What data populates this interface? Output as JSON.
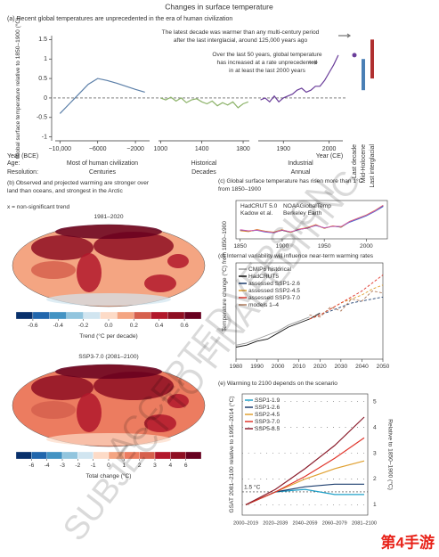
{
  "chart_data": [
    {
      "type": "segmented",
      "title": "Changes in surface temperature",
      "subtitle": "(a) Recent global temperatures are unprecedented in the era of human civilization",
      "ylabel": "Global surface temperature relative to 1850–1900 (°C)",
      "ylim": [
        -1.1,
        1.6
      ],
      "yticks": [
        -1,
        -0.5,
        0,
        0.5,
        1,
        1.5
      ],
      "xlabel": "Year (BCE)",
      "xlabel2": "Year (CE)",
      "segments": [
        {
          "color": "#5b7fa8",
          "xlim": [
            -10500,
            -500
          ],
          "xticks": [
            {
              "value": -10000,
              "label": "−10,000"
            },
            {
              "value": -6000,
              "label": "−6000"
            },
            {
              "value": -2000,
              "label": "−2000"
            }
          ],
          "x": [
            -10000,
            -9000,
            -8000,
            -7000,
            -6000,
            -5000,
            -4000,
            -3000,
            -2000,
            -1000
          ],
          "values": [
            -0.4,
            -0.15,
            0.1,
            0.35,
            0.5,
            0.45,
            0.38,
            0.3,
            0.22,
            0.15
          ]
        },
        {
          "color": "#8db36a",
          "xlim": [
            980,
            1860
          ],
          "xticks": [
            1000,
            1400,
            1800
          ],
          "x": [
            1000,
            1050,
            1100,
            1150,
            1200,
            1250,
            1300,
            1350,
            1400,
            1450,
            1500,
            1550,
            1600,
            1650,
            1700,
            1750,
            1800,
            1850
          ],
          "values": [
            0.0,
            -0.05,
            0.02,
            -0.08,
            0.0,
            -0.12,
            -0.05,
            -0.02,
            -0.1,
            -0.15,
            -0.08,
            -0.2,
            -0.12,
            -0.18,
            -0.1,
            -0.25,
            -0.15,
            -0.1
          ]
        },
        {
          "color": "#6a3d9a",
          "xlim": [
            1845,
            2030
          ],
          "xticks": [
            1900,
            2000
          ],
          "x": [
            1850,
            1860,
            1870,
            1880,
            1890,
            1900,
            1910,
            1920,
            1930,
            1940,
            1950,
            1960,
            1970,
            1980,
            1990,
            2000,
            2010,
            2020
          ],
          "values": [
            -0.05,
            0.0,
            -0.1,
            0.05,
            -0.1,
            0.0,
            0.05,
            0.1,
            0.2,
            0.25,
            0.15,
            0.2,
            0.3,
            0.3,
            0.45,
            0.65,
            0.85,
            1.1
          ]
        }
      ],
      "points": [
        {
          "name": "Last decade",
          "color": "#6a3d9a",
          "value": 1.1
        }
      ],
      "ranges": [
        {
          "name": "Mid-Holocene",
          "color": "#4a7fb5",
          "values": [
            0.2,
            1.0
          ]
        },
        {
          "name": "Last interglacial",
          "color": "#b03030",
          "values": [
            0.5,
            1.5
          ]
        }
      ],
      "annotations": [
        "The latest decade was warmer than any multi-century period",
        "after the last interglacial, around 125,000 years ago",
        "Over the last 50 years, global temperature",
        "has increased at a rate unprecedented",
        "in at least the last 2000 years"
      ],
      "age_label": "Age:",
      "resolution_label": "Resolution:",
      "periods": [
        {
          "age": "Most of human civilization",
          "resolution": "Centuries"
        },
        {
          "age": "Historical",
          "resolution": "Decades"
        },
        {
          "age": "Industrial",
          "resolution": "Annual"
        }
      ]
    },
    {
      "type": "map",
      "title": [
        "(b) Observed and projected warming are stronger over",
        "land than oceans, and strongest in the Arctic"
      ],
      "note": "x = non-significant trend",
      "maps": [
        {
          "title": "1981–2020",
          "label": "Trend (°C per decade)",
          "colors": [
            "#08306b",
            "#2166ac",
            "#4393c3",
            "#92c5de",
            "#d1e5f0",
            "#fddbc7",
            "#f4a582",
            "#d6604d",
            "#b2182b",
            "#8e0e22",
            "#67001f"
          ],
          "ticks": [
            -0.6,
            -0.4,
            -0.2,
            {
              "value": 0,
              "label": "0.0"
            },
            0.2,
            0.4,
            0.6
          ]
        },
        {
          "title": "SSP3-7.0 (2081–2100)",
          "label": "Total change (°C)",
          "colors": [
            "#08306b",
            "#2166ac",
            "#4393c3",
            "#92c5de",
            "#d1e5f0",
            "#fddbc7",
            "#f4a582",
            "#ec7c60",
            "#d6604d",
            "#b2182b",
            "#8e0e22",
            "#67001f"
          ],
          "ticks": [
            -6,
            -4,
            -3,
            -2,
            -1,
            0,
            1,
            2,
            3,
            4,
            6
          ]
        }
      ]
    },
    {
      "type": "line",
      "title": [
        "(c) Global surface temperature has risen more than 1°C",
        "from 1850–1900"
      ],
      "ylabel": "Temperature change (°C) from 1850–1900",
      "xlim": [
        1845,
        2025
      ],
      "xticks": [
        1850,
        1900,
        1950,
        2000
      ],
      "ylim": [
        -0.4,
        1.4
      ],
      "x": [
        1850,
        1860,
        1870,
        1880,
        1890,
        1900,
        1910,
        1920,
        1930,
        1940,
        1950,
        1960,
        1970,
        1980,
        1990,
        2000,
        2010,
        2020
      ],
      "series": [
        {
          "name": "HadCRUT 5.0",
          "color": "#222222",
          "values": [
            0.0,
            -0.05,
            0.02,
            -0.05,
            -0.1,
            0.0,
            -0.1,
            0.05,
            0.1,
            0.25,
            0.1,
            0.2,
            0.15,
            0.4,
            0.55,
            0.7,
            0.9,
            1.15
          ]
        },
        {
          "name": "NOAAGlobalTemp",
          "color": "#3b6fd0",
          "values": [
            0.02,
            -0.03,
            0.0,
            -0.08,
            -0.12,
            0.02,
            -0.08,
            0.03,
            0.12,
            0.22,
            0.12,
            0.18,
            0.17,
            0.38,
            0.52,
            0.68,
            0.88,
            1.12
          ]
        },
        {
          "name": "Kadow et al.",
          "color": "#e08a30",
          "values": [
            -0.02,
            -0.06,
            0.04,
            -0.04,
            -0.08,
            0.03,
            -0.09,
            0.06,
            0.13,
            0.27,
            0.09,
            0.21,
            0.16,
            0.42,
            0.57,
            0.72,
            0.93,
            1.18
          ]
        },
        {
          "name": "Berkeley Earth",
          "color": "#d055b0",
          "values": [
            0.03,
            -0.02,
            0.01,
            -0.06,
            -0.11,
            0.01,
            -0.07,
            0.04,
            0.11,
            0.24,
            0.11,
            0.19,
            0.18,
            0.41,
            0.56,
            0.71,
            0.91,
            1.17
          ]
        }
      ]
    },
    {
      "type": "line",
      "title": [
        "(d) Internal variability will influence near-term warming rates"
      ],
      "xlim": [
        1980,
        2050
      ],
      "xticks": [
        1980,
        1990,
        2000,
        2010,
        2020,
        2030,
        2040,
        2050
      ],
      "ylim": [
        0,
        2.4
      ],
      "series": [
        {
          "name": "CMIP6 historical",
          "color": "#9a9a9a",
          "x": [
            1980,
            1985,
            1990,
            1995,
            2000,
            2005,
            2010,
            2015
          ],
          "values": [
            0.35,
            0.4,
            0.5,
            0.6,
            0.7,
            0.85,
            0.95,
            1.05
          ]
        },
        {
          "name": "HadCRUT5",
          "color": "#111111",
          "x": [
            1980,
            1985,
            1990,
            1995,
            2000,
            2005,
            2010,
            2015,
            2020
          ],
          "values": [
            0.3,
            0.35,
            0.45,
            0.5,
            0.65,
            0.8,
            0.9,
            1.0,
            1.15
          ]
        },
        {
          "name": "assessed SSP1-2.6",
          "color": "#1d3e6e",
          "x": [
            2015,
            2020,
            2025,
            2030,
            2035,
            2040,
            2045,
            2050
          ],
          "values": [
            1.0,
            1.1,
            1.2,
            1.3,
            1.4,
            1.45,
            1.5,
            1.55
          ]
        },
        {
          "name": "assessed SSP2-4.5",
          "color": "#e0a030",
          "x": [
            2015,
            2020,
            2025,
            2030,
            2035,
            2040,
            2045,
            2050
          ],
          "values": [
            1.0,
            1.1,
            1.25,
            1.4,
            1.5,
            1.6,
            1.75,
            1.85
          ]
        },
        {
          "name": "assessed SSP3-7.0",
          "color": "#e0352b",
          "x": [
            2015,
            2020,
            2025,
            2030,
            2035,
            2040,
            2045,
            2050
          ],
          "values": [
            1.0,
            1.1,
            1.25,
            1.4,
            1.55,
            1.7,
            1.9,
            2.1
          ]
        },
        {
          "name": "models 1–4",
          "color": "#b07a5a",
          "x": [
            2015,
            2020,
            2025,
            2030,
            2035,
            2040,
            2045,
            2050
          ],
          "values": [
            1.1,
            1.05,
            1.3,
            1.2,
            1.5,
            1.45,
            1.7,
            1.65
          ]
        }
      ]
    },
    {
      "type": "line",
      "title": [
        "(e) Warming to 2100 depends on the scenario"
      ],
      "ylabel": "GSAT 2081–2100 relative to 1995–2014 (°C)",
      "y2label": "Relative to 1850–1900 (°C)",
      "categories": [
        "2000–2019",
        "2020–2039",
        "2040–2059",
        "2060–2079",
        "2081–2100"
      ],
      "ylim": [
        0.6,
        5.3
      ],
      "yticks": [
        1,
        2,
        3,
        4,
        5
      ],
      "threshold": 1.5,
      "threshold_label": "1.5 °C",
      "series": [
        {
          "name": "SSP1-1.9",
          "color": "#1fa0c8",
          "values": [
            1.0,
            1.5,
            1.6,
            1.4,
            1.4
          ]
        },
        {
          "name": "SSP1-2.6",
          "color": "#1d3e6e",
          "values": [
            1.0,
            1.5,
            1.7,
            1.8,
            1.8
          ]
        },
        {
          "name": "SSP2-4.5",
          "color": "#e0a030",
          "values": [
            1.0,
            1.5,
            2.0,
            2.4,
            2.7
          ]
        },
        {
          "name": "SSP3-7.0",
          "color": "#e0352b",
          "values": [
            1.0,
            1.5,
            2.1,
            2.8,
            3.6
          ]
        },
        {
          "name": "SSP5-8.5",
          "color": "#8b1d2c",
          "values": [
            1.0,
            1.6,
            2.4,
            3.3,
            4.4
          ]
        }
      ]
    }
  ],
  "watermark": [
    "ACCEPTED VERSION",
    "SUBJECT TO FINAL EDITING"
  ],
  "logo": "第4手游"
}
